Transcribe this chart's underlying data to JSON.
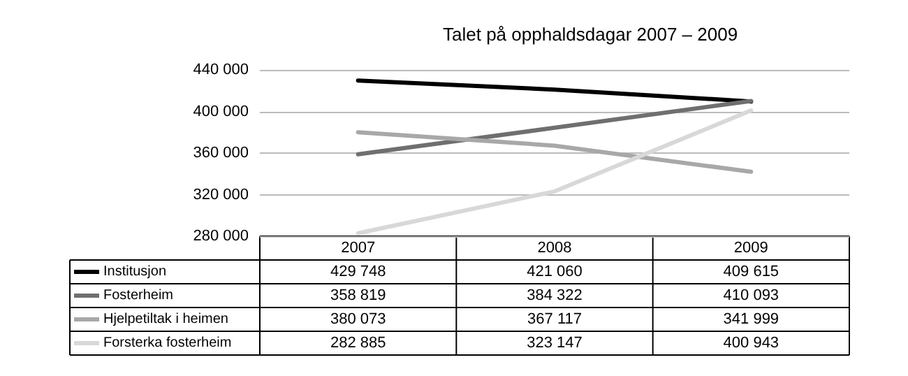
{
  "chart_data": {
    "type": "line",
    "title": "Talet på opphaldsdagar 2007 – 2009",
    "categories": [
      "2007",
      "2008",
      "2009"
    ],
    "series": [
      {
        "name": "Institusjon",
        "color": "#000000",
        "values": [
          429748,
          421060,
          409615
        ],
        "value_labels": [
          "429 748",
          "421 060",
          "409 615"
        ]
      },
      {
        "name": "Fosterheim",
        "color": "#6f6f6f",
        "values": [
          358819,
          384322,
          410093
        ],
        "value_labels": [
          "358 819",
          "384 322",
          "410 093"
        ]
      },
      {
        "name": "Hjelpetiltak i heimen",
        "color": "#a8a8a8",
        "values": [
          380073,
          367117,
          341999
        ],
        "value_labels": [
          "380 073",
          "367 117",
          "341 999"
        ]
      },
      {
        "name": "Forsterka fosterheim",
        "color": "#d8d8d8",
        "values": [
          282885,
          323147,
          400943
        ],
        "value_labels": [
          "282 885",
          "323 147",
          "400 943"
        ]
      }
    ],
    "ylim": [
      280000,
      440000
    ],
    "yticks": [
      {
        "value": 280000,
        "label": "280 000"
      },
      {
        "value": 320000,
        "label": "320 000"
      },
      {
        "value": 360000,
        "label": "360 000"
      },
      {
        "value": 400000,
        "label": "400 000"
      },
      {
        "value": 440000,
        "label": "440 000"
      }
    ],
    "grid": "y",
    "legend": "bottom",
    "marker": "none",
    "line_style": "solid"
  }
}
